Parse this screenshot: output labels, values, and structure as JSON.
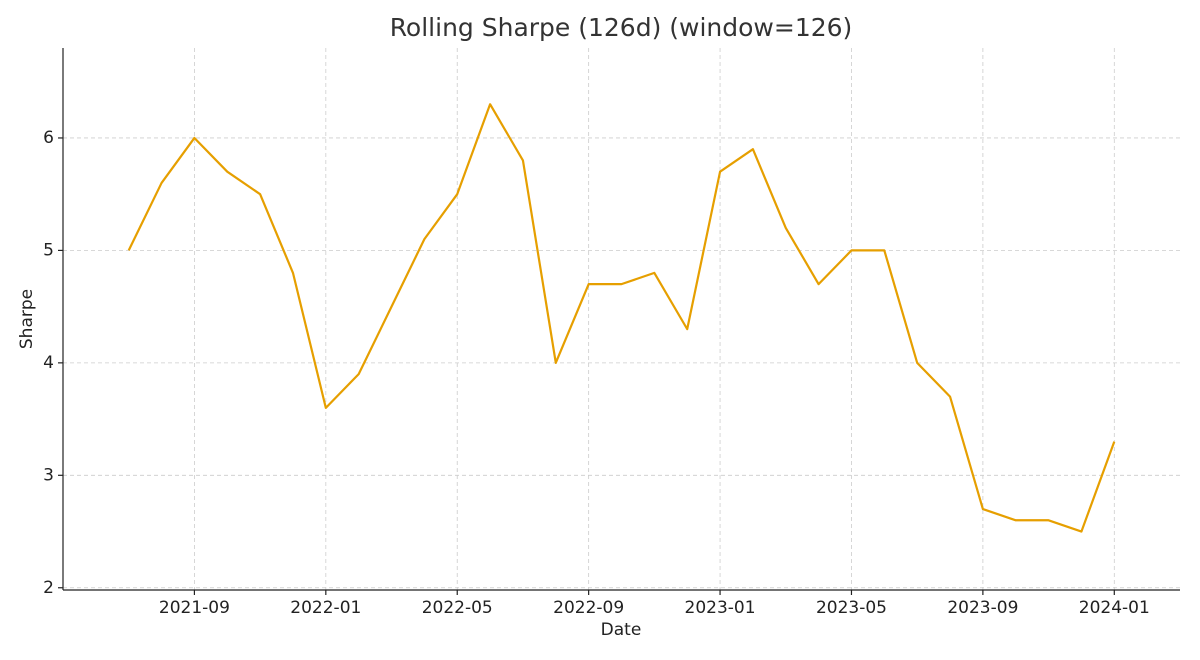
{
  "chart_data": {
    "type": "line",
    "title": "Rolling Sharpe (126d) (window=126)",
    "x_label": "Date",
    "y_label": "Sharpe",
    "x": [
      "2021-07",
      "2021-08",
      "2021-09",
      "2021-10",
      "2021-11",
      "2021-12",
      "2022-01",
      "2022-02",
      "2022-03",
      "2022-04",
      "2022-05",
      "2022-06",
      "2022-07",
      "2022-08",
      "2022-09",
      "2022-10",
      "2022-11",
      "2022-12",
      "2023-01",
      "2023-02",
      "2023-03",
      "2023-04",
      "2023-05",
      "2023-06",
      "2023-07",
      "2023-08",
      "2023-09",
      "2023-10",
      "2023-11",
      "2023-12",
      "2024-01"
    ],
    "series": [
      {
        "name": "Sharpe",
        "color": "#e69f00",
        "values": [
          5.0,
          5.6,
          6.0,
          5.7,
          5.5,
          4.8,
          3.6,
          3.9,
          4.5,
          5.1,
          5.5,
          6.3,
          5.8,
          4.0,
          4.7,
          4.7,
          4.8,
          4.3,
          5.7,
          5.9,
          5.2,
          4.7,
          5.0,
          5.0,
          4.0,
          3.7,
          2.7,
          2.6,
          2.6,
          2.5,
          3.3
        ]
      }
    ],
    "xlim": [
      "2021-05",
      "2024-03"
    ],
    "xticks": [
      "2021-09",
      "2022-01",
      "2022-05",
      "2022-09",
      "2023-01",
      "2023-05",
      "2023-09",
      "2024-01"
    ],
    "ylim": [
      1.98,
      6.8
    ],
    "yticks": [
      2,
      3,
      4,
      5,
      6
    ],
    "grid": true
  }
}
